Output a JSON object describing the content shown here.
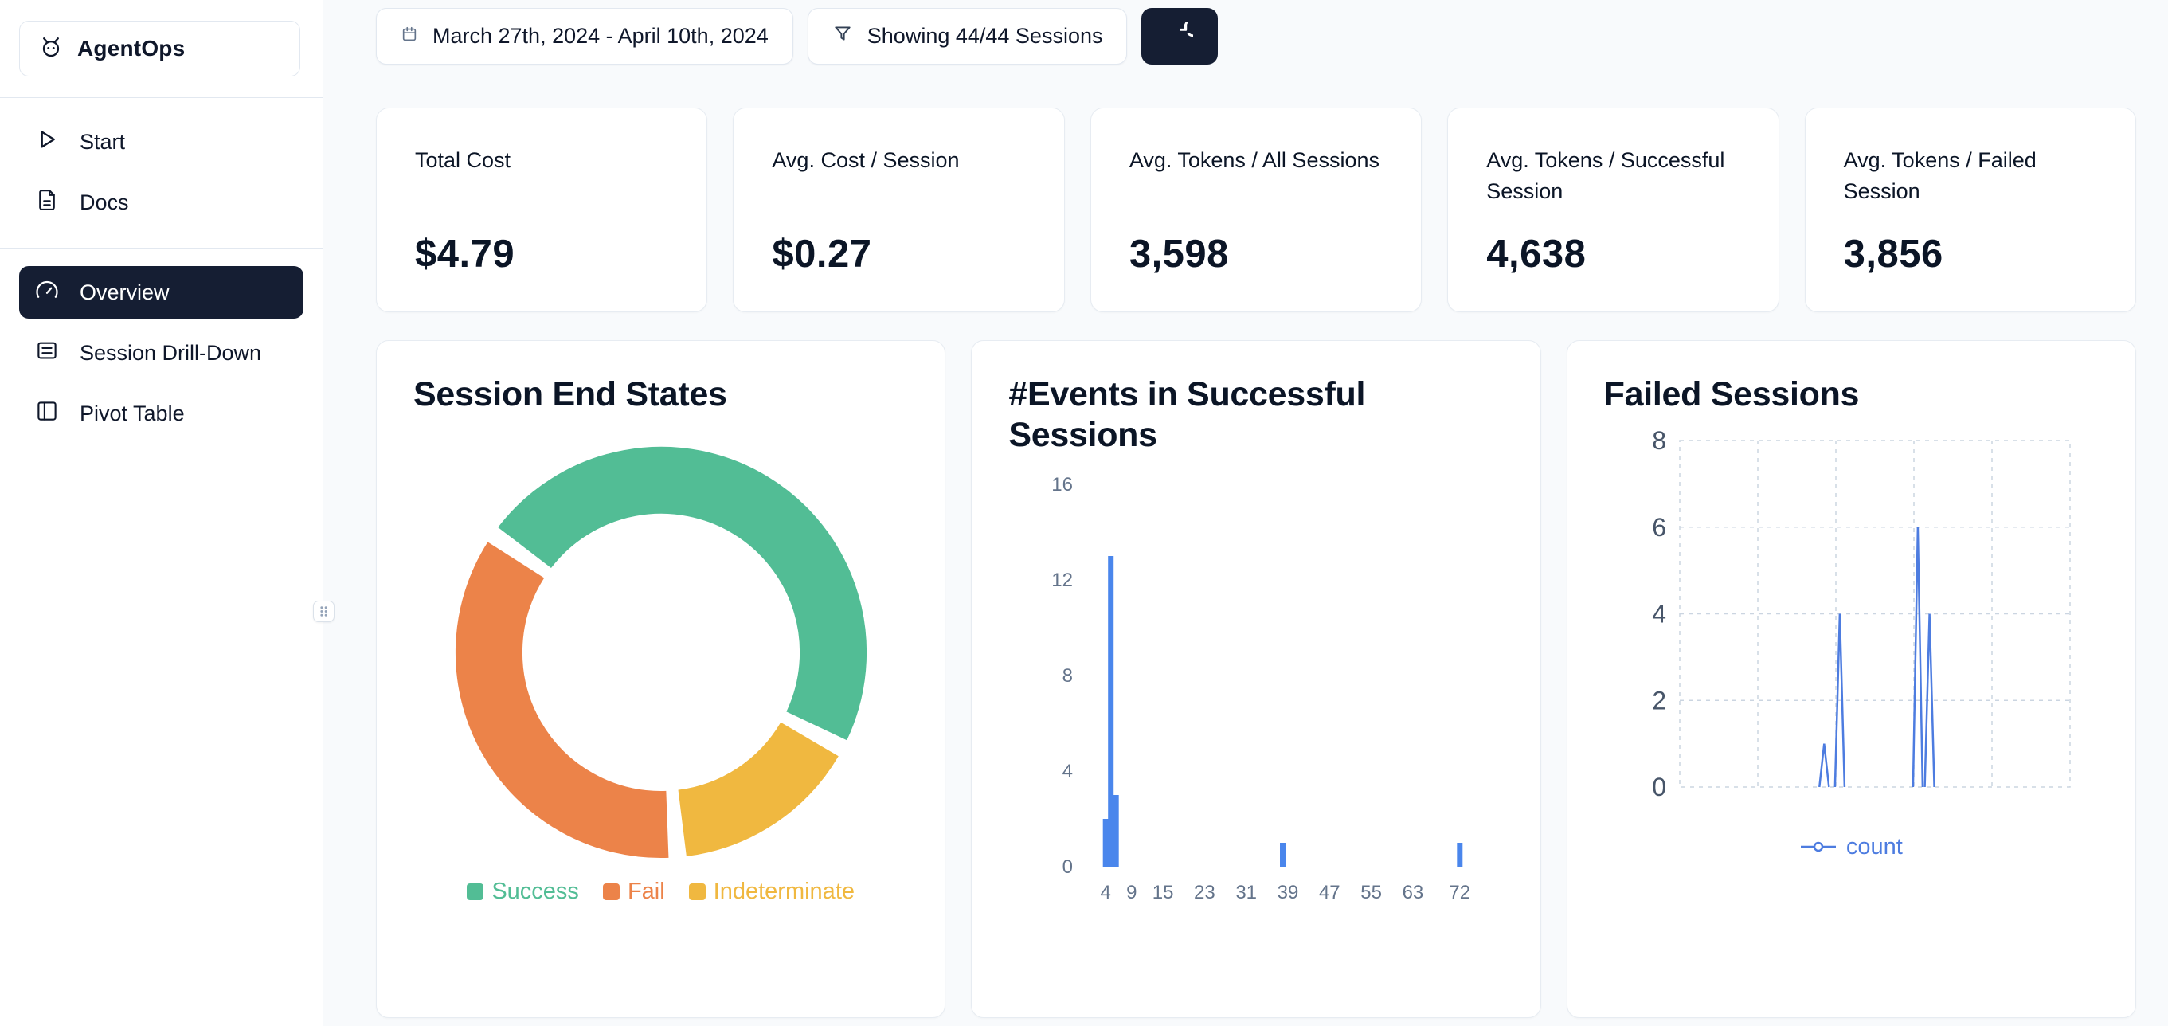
{
  "app": {
    "name": "AgentOps",
    "logo_icon": "agentops-logo-icon"
  },
  "sidebar": {
    "nav_top": [
      {
        "label": "Start",
        "icon": "play-icon"
      },
      {
        "label": "Docs",
        "icon": "docs-icon"
      }
    ],
    "nav_main": [
      {
        "label": "Overview",
        "icon": "gauge-icon",
        "active": true
      },
      {
        "label": "Session Drill-Down",
        "icon": "sessions-list-icon",
        "active": false
      },
      {
        "label": "Pivot Table",
        "icon": "pivot-table-icon",
        "active": false
      }
    ]
  },
  "topbar": {
    "date_range": "March 27th, 2024 - April 10th, 2024",
    "date_icon": "calendar-icon",
    "sessions_filter": "Showing 44/44 Sessions",
    "filter_icon": "filter-icon",
    "refresh_icon": "refresh-icon"
  },
  "stat_cards": [
    {
      "label": "Total Cost",
      "value": "$4.79"
    },
    {
      "label": "Avg. Cost / Session",
      "value": "$0.27"
    },
    {
      "label": "Avg. Tokens / All Sessions",
      "value": "3,598"
    },
    {
      "label": "Avg. Tokens / Successful Session",
      "value": "4,638"
    },
    {
      "label": "Avg. Tokens / Failed Session",
      "value": "3,856"
    }
  ],
  "colors": {
    "accent_dark": "#151e33",
    "card_border": "#e7ecf2",
    "success": "#52BD95",
    "fail": "#EC8349",
    "indeterminate": "#F0B840",
    "chart_blue": "#4A86EC"
  },
  "chart_data": [
    {
      "type": "pie",
      "title": "Session End States",
      "donut": true,
      "start_angle_deg": -55,
      "pad_angle_deg": 5,
      "segments": [
        {
          "label": "Success",
          "percent": 48,
          "color": "#52BD95"
        },
        {
          "label": "Indeterminate",
          "percent": 16,
          "color": "#F0B840"
        },
        {
          "label": "Fail",
          "percent": 36,
          "color": "#EC8349"
        }
      ],
      "legend": [
        {
          "label": "Success",
          "color": "#52BD95"
        },
        {
          "label": "Fail",
          "color": "#EC8349"
        },
        {
          "label": "Indeterminate",
          "color": "#F0B840"
        }
      ]
    },
    {
      "type": "bar",
      "title": "#Events in Successful Sessions",
      "x_ticks": [
        4,
        9,
        15,
        23,
        31,
        39,
        47,
        55,
        63,
        72
      ],
      "y_ticks": [
        0,
        4,
        8,
        12,
        16
      ],
      "x_range": [
        0,
        78
      ],
      "y_range": [
        0,
        16
      ],
      "bar_color": "#4A86EC",
      "bars": [
        {
          "x": 4,
          "count": 2
        },
        {
          "x": 5,
          "count": 13
        },
        {
          "x": 6,
          "count": 3
        },
        {
          "x": 38,
          "count": 1
        },
        {
          "x": 72,
          "count": 1
        }
      ]
    },
    {
      "type": "line",
      "title": "Failed Sessions",
      "series_name": "count",
      "line_color": "#4D7CE0",
      "y_ticks": [
        0,
        2,
        4,
        6,
        8
      ],
      "y_range": [
        0,
        8
      ],
      "grid_style": "dashed",
      "spikes": [
        {
          "x_frac": 0.37,
          "count": 1
        },
        {
          "x_frac": 0.41,
          "count": 4
        },
        {
          "x_frac": 0.61,
          "count": 6
        },
        {
          "x_frac": 0.64,
          "count": 4
        }
      ]
    }
  ]
}
